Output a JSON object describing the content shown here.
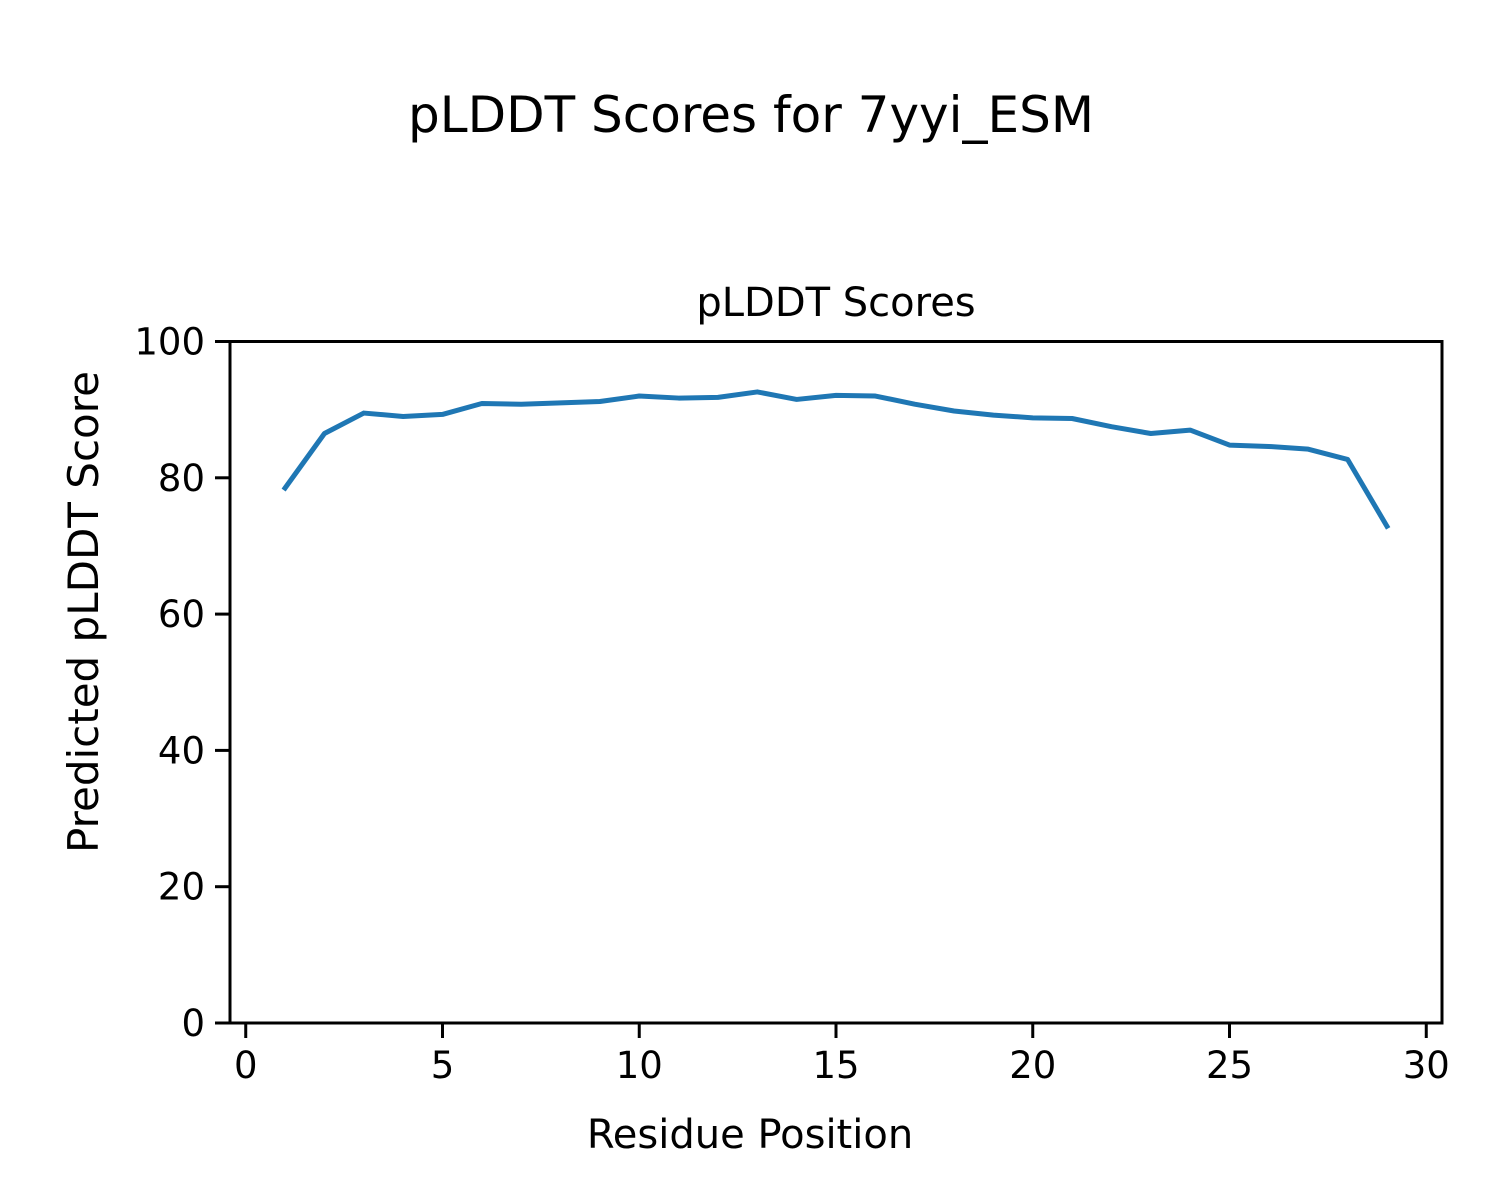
{
  "figure": {
    "suptitle": "pLDDT Scores for 7yyi_ESM"
  },
  "chart_data": {
    "type": "line",
    "title": "pLDDT Scores",
    "xlabel": "Residue Position",
    "ylabel": "Predicted pLDDT Score",
    "x": [
      1,
      2,
      3,
      4,
      5,
      6,
      7,
      8,
      9,
      10,
      11,
      12,
      13,
      14,
      15,
      16,
      17,
      18,
      19,
      20,
      21,
      22,
      23,
      24,
      25,
      26,
      27,
      28,
      29
    ],
    "y": [
      78.5,
      86.5,
      89.5,
      89.0,
      89.3,
      90.9,
      90.8,
      91.0,
      91.2,
      92.0,
      91.7,
      91.8,
      92.6,
      91.5,
      92.1,
      92.0,
      90.8,
      89.8,
      89.2,
      88.8,
      88.7,
      87.5,
      86.5,
      87.0,
      84.8,
      84.6,
      84.2,
      82.7,
      72.9
    ],
    "xlim": [
      -0.4,
      30.4
    ],
    "ylim": [
      0,
      100
    ],
    "xticks": [
      0,
      5,
      10,
      15,
      20,
      25,
      30
    ],
    "yticks": [
      0,
      20,
      40,
      60,
      80,
      100
    ],
    "grid": false,
    "legend": "none",
    "line_color": "#1f77b4",
    "axis_color": "#000000",
    "background_color": "#ffffff"
  }
}
